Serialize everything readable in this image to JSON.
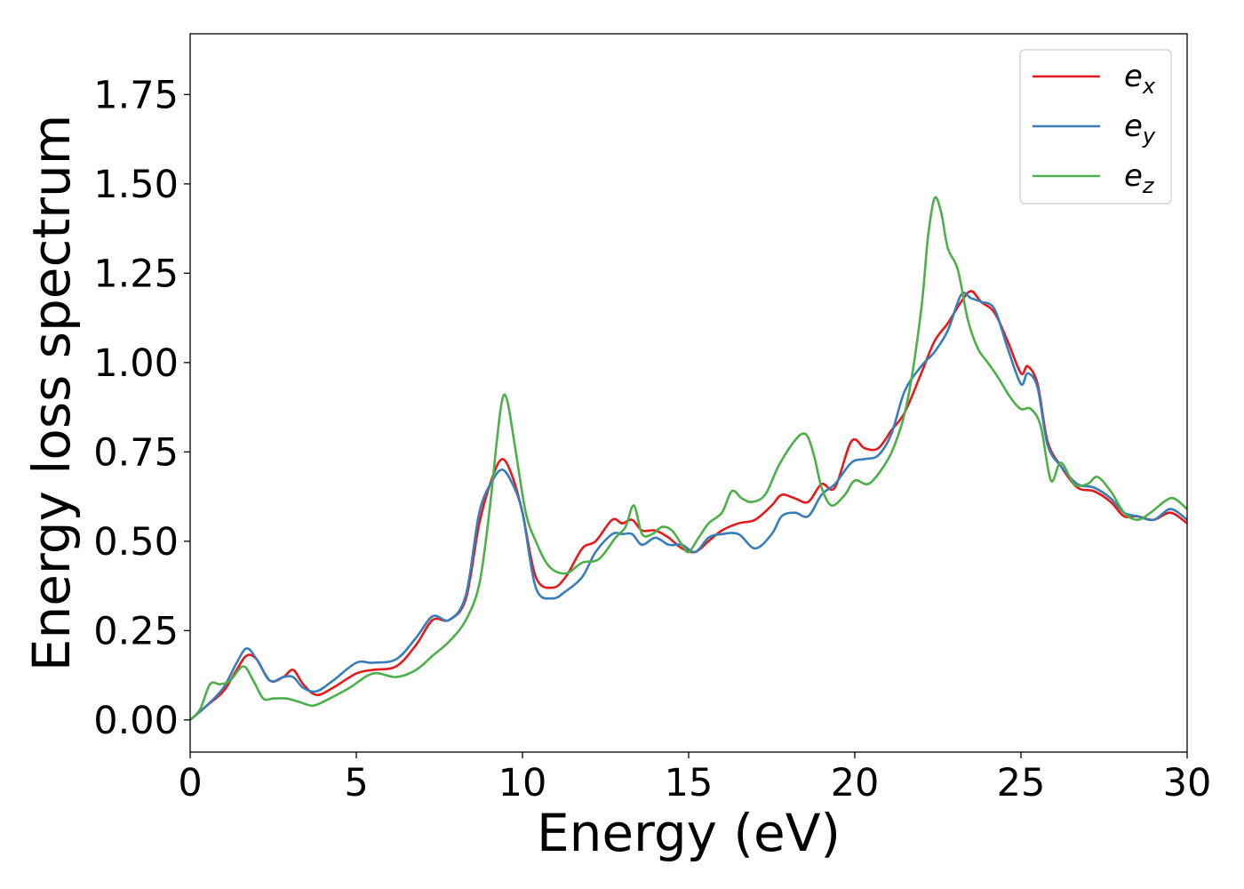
{
  "chart_data": {
    "type": "line",
    "title": "",
    "xlabel": "Energy (eV)",
    "ylabel": "Energy loss spectrum",
    "xlim": [
      0,
      30
    ],
    "ylim": [
      -0.09,
      1.92
    ],
    "xticks": [
      "0",
      "5",
      "10",
      "15",
      "20",
      "25",
      "30"
    ],
    "yticks": [
      "0.00",
      "0.25",
      "0.50",
      "0.75",
      "1.00",
      "1.25",
      "1.50",
      "1.75"
    ],
    "grid": false,
    "legend_position": "top-right",
    "legend": [
      {
        "base": "e",
        "sub": "x"
      },
      {
        "base": "e",
        "sub": "y"
      },
      {
        "base": "e",
        "sub": "z"
      }
    ],
    "colors": {
      "e_x": "#e41a1c",
      "e_y": "#377eb8",
      "e_z": "#4daf4a"
    },
    "series": [
      {
        "name": "e_x",
        "color": "#e41a1c",
        "x": [
          0,
          0.5,
          1.0,
          1.4,
          1.7,
          2.0,
          2.4,
          2.8,
          3.1,
          3.4,
          3.8,
          4.3,
          5.0,
          5.5,
          6.2,
          6.8,
          7.3,
          7.8,
          8.3,
          8.7,
          9.1,
          9.4,
          9.7,
          10.0,
          10.4,
          10.9,
          11.3,
          11.8,
          12.2,
          12.7,
          13.0,
          13.3,
          13.6,
          14.0,
          14.4,
          14.8,
          15.2,
          15.6,
          16.0,
          16.5,
          17.0,
          17.5,
          17.8,
          18.2,
          18.6,
          19.0,
          19.4,
          19.9,
          20.3,
          20.7,
          21.1,
          21.5,
          22.0,
          22.4,
          22.8,
          23.2,
          23.5,
          23.8,
          24.2,
          24.6,
          25.0,
          25.2,
          25.5,
          25.8,
          26.2,
          26.7,
          27.2,
          27.7,
          28.1,
          28.5,
          29.0,
          29.5,
          30.0
        ],
        "y": [
          0.0,
          0.04,
          0.08,
          0.14,
          0.18,
          0.17,
          0.11,
          0.12,
          0.14,
          0.1,
          0.07,
          0.09,
          0.13,
          0.14,
          0.15,
          0.21,
          0.28,
          0.28,
          0.34,
          0.55,
          0.68,
          0.73,
          0.68,
          0.58,
          0.4,
          0.37,
          0.4,
          0.48,
          0.5,
          0.56,
          0.55,
          0.56,
          0.53,
          0.53,
          0.51,
          0.48,
          0.47,
          0.5,
          0.53,
          0.55,
          0.56,
          0.6,
          0.63,
          0.62,
          0.61,
          0.66,
          0.65,
          0.78,
          0.76,
          0.76,
          0.81,
          0.86,
          0.97,
          1.06,
          1.11,
          1.17,
          1.2,
          1.17,
          1.14,
          1.06,
          0.97,
          0.99,
          0.94,
          0.78,
          0.71,
          0.65,
          0.64,
          0.61,
          0.57,
          0.57,
          0.56,
          0.58,
          0.55
        ]
      },
      {
        "name": "e_y",
        "color": "#377eb8",
        "x": [
          0,
          0.5,
          1.0,
          1.4,
          1.7,
          2.0,
          2.4,
          2.8,
          3.1,
          3.4,
          3.8,
          4.3,
          5.0,
          5.5,
          6.2,
          6.8,
          7.3,
          7.8,
          8.3,
          8.7,
          9.1,
          9.4,
          9.7,
          10.0,
          10.4,
          10.9,
          11.3,
          11.8,
          12.2,
          12.7,
          13.0,
          13.3,
          13.6,
          14.0,
          14.4,
          14.8,
          15.2,
          15.6,
          16.0,
          16.5,
          17.0,
          17.5,
          17.8,
          18.2,
          18.6,
          19.0,
          19.4,
          19.9,
          20.3,
          20.7,
          21.1,
          21.5,
          22.0,
          22.4,
          22.8,
          23.2,
          23.5,
          23.8,
          24.2,
          24.6,
          25.0,
          25.2,
          25.5,
          25.8,
          26.2,
          26.7,
          27.2,
          27.7,
          28.1,
          28.5,
          29.0,
          29.5,
          30.0
        ],
        "y": [
          0.0,
          0.04,
          0.09,
          0.16,
          0.2,
          0.17,
          0.11,
          0.12,
          0.12,
          0.09,
          0.08,
          0.11,
          0.16,
          0.16,
          0.17,
          0.23,
          0.29,
          0.28,
          0.35,
          0.58,
          0.67,
          0.7,
          0.66,
          0.58,
          0.37,
          0.34,
          0.36,
          0.4,
          0.47,
          0.52,
          0.52,
          0.52,
          0.49,
          0.51,
          0.49,
          0.49,
          0.47,
          0.51,
          0.52,
          0.52,
          0.48,
          0.52,
          0.57,
          0.58,
          0.57,
          0.63,
          0.66,
          0.72,
          0.73,
          0.74,
          0.8,
          0.92,
          0.99,
          1.03,
          1.09,
          1.19,
          1.18,
          1.17,
          1.15,
          1.04,
          0.94,
          0.97,
          0.93,
          0.77,
          0.71,
          0.66,
          0.65,
          0.62,
          0.58,
          0.57,
          0.56,
          0.59,
          0.56
        ]
      },
      {
        "name": "e_z",
        "color": "#4daf4a",
        "x": [
          0,
          0.3,
          0.6,
          0.9,
          1.2,
          1.6,
          1.9,
          2.2,
          2.5,
          2.9,
          3.3,
          3.7,
          4.2,
          4.8,
          5.5,
          6.2,
          6.8,
          7.3,
          7.8,
          8.3,
          8.7,
          9.0,
          9.25,
          9.4,
          9.55,
          9.8,
          10.1,
          10.4,
          10.8,
          11.3,
          11.8,
          12.3,
          12.8,
          13.1,
          13.35,
          13.6,
          13.9,
          14.2,
          14.5,
          14.8,
          15.0,
          15.3,
          15.6,
          16.0,
          16.3,
          16.6,
          16.9,
          17.3,
          17.7,
          18.1,
          18.4,
          18.6,
          18.8,
          19.0,
          19.3,
          19.7,
          20.0,
          20.4,
          20.8,
          21.2,
          21.6,
          22.0,
          22.2,
          22.4,
          22.6,
          22.8,
          23.1,
          23.4,
          23.7,
          24.0,
          24.3,
          24.7,
          25.0,
          25.3,
          25.6,
          25.9,
          26.2,
          26.6,
          27.0,
          27.3,
          27.7,
          28.1,
          28.5,
          28.9,
          29.3,
          29.6,
          30.0
        ],
        "y": [
          0.0,
          0.03,
          0.1,
          0.1,
          0.11,
          0.15,
          0.11,
          0.06,
          0.06,
          0.06,
          0.05,
          0.04,
          0.06,
          0.09,
          0.13,
          0.12,
          0.14,
          0.18,
          0.22,
          0.28,
          0.38,
          0.58,
          0.8,
          0.9,
          0.89,
          0.75,
          0.58,
          0.5,
          0.43,
          0.41,
          0.44,
          0.45,
          0.51,
          0.54,
          0.6,
          0.52,
          0.52,
          0.54,
          0.53,
          0.49,
          0.47,
          0.51,
          0.55,
          0.58,
          0.64,
          0.62,
          0.61,
          0.63,
          0.71,
          0.77,
          0.8,
          0.79,
          0.73,
          0.65,
          0.6,
          0.63,
          0.67,
          0.66,
          0.7,
          0.77,
          0.9,
          1.15,
          1.35,
          1.46,
          1.42,
          1.32,
          1.26,
          1.12,
          1.04,
          1.0,
          0.96,
          0.9,
          0.87,
          0.87,
          0.82,
          0.67,
          0.72,
          0.66,
          0.66,
          0.68,
          0.64,
          0.58,
          0.56,
          0.58,
          0.61,
          0.62,
          0.59
        ]
      }
    ]
  }
}
